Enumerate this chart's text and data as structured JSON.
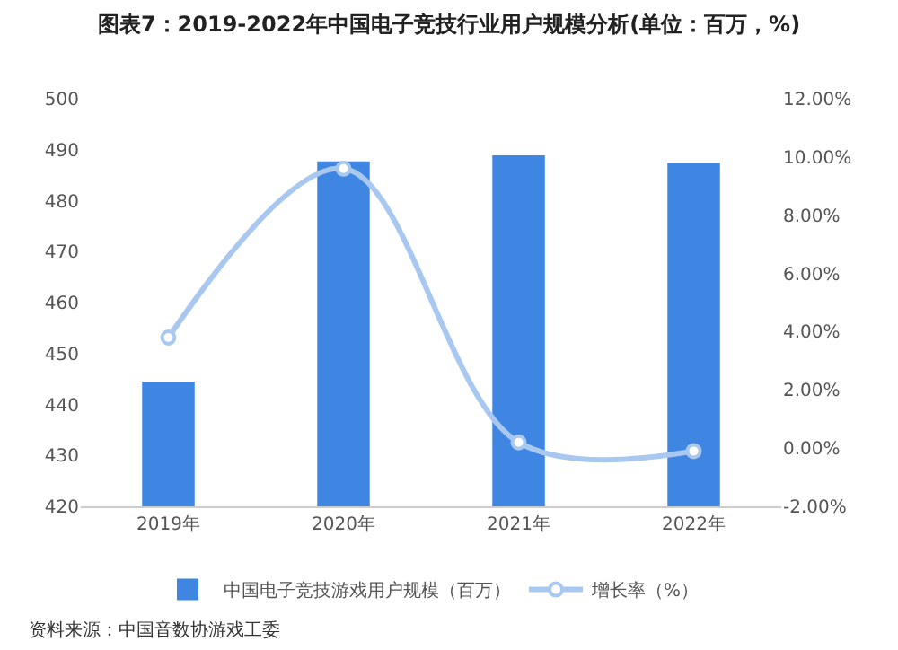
{
  "chart_data": {
    "type": "bar",
    "title": "图表7：2019-2022年中国电子竞技行业用户规模分析(单位：百万，%)",
    "categories": [
      "2019年",
      "2020年",
      "2021年",
      "2022年"
    ],
    "series": [
      {
        "name": "中国电子竞技游戏用户规模（百万）",
        "color": "#3f86e2",
        "values": [
          444.5,
          487.7,
          488.9,
          487.4
        ]
      },
      {
        "name": "增长率（%）",
        "type": "line",
        "axis": "y2",
        "color": "#a9c8f0",
        "values": [
          3.8,
          9.6,
          0.2,
          -0.1
        ]
      }
    ],
    "ylim": [
      420,
      500
    ],
    "yticks": [
      420,
      430,
      440,
      450,
      460,
      470,
      480,
      490,
      500
    ],
    "y2lim": [
      -2,
      12
    ],
    "y2ticks": [
      {
        "value": -2,
        "label": "-2.00%"
      },
      {
        "value": 0,
        "label": "0.00%"
      },
      {
        "value": 2,
        "label": "2.00%"
      },
      {
        "value": 4,
        "label": "4.00%"
      },
      {
        "value": 6,
        "label": "6.00%"
      },
      {
        "value": 8,
        "label": "8.00%"
      },
      {
        "value": 10,
        "label": "10.00%"
      },
      {
        "value": 12,
        "label": "12.00%"
      }
    ],
    "marker": "circle",
    "legend": "bottom",
    "grid": false,
    "annotations": [
      "资料来源：中国音数协游戏工委"
    ]
  }
}
